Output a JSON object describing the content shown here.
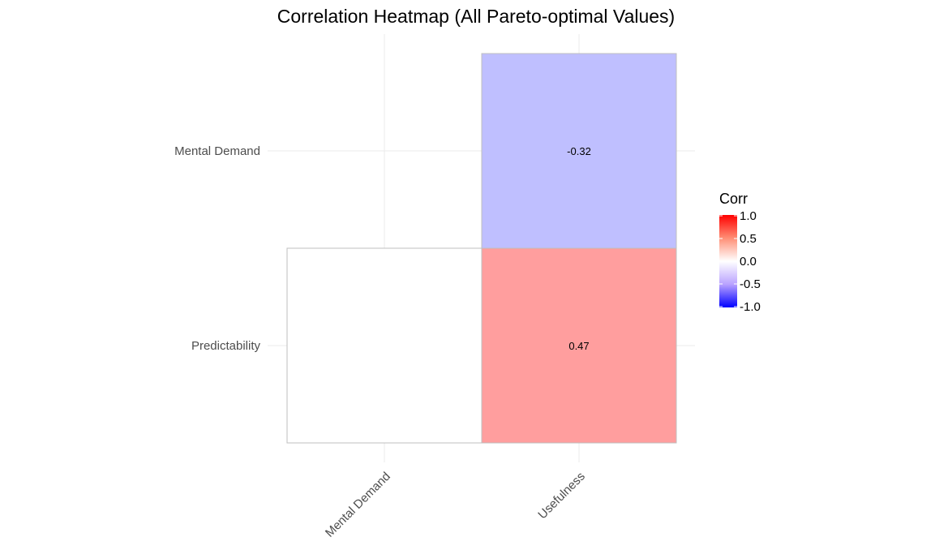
{
  "chart_data": {
    "type": "heatmap",
    "title": "Correlation Heatmap (All Pareto-optimal Values)",
    "x_categories": [
      "Mental Demand",
      "Usefulness"
    ],
    "y_categories": [
      "Predictability",
      "Mental Demand"
    ],
    "cells": [
      {
        "x": "Usefulness",
        "y": "Mental Demand",
        "value": -0.32,
        "label": "-0.32"
      },
      {
        "x": "Mental Demand",
        "y": "Predictability",
        "value": null,
        "label": ""
      },
      {
        "x": "Usefulness",
        "y": "Predictability",
        "value": 0.47,
        "label": "0.47"
      }
    ],
    "legend": {
      "title": "Corr",
      "range": [
        -1.0,
        1.0
      ],
      "ticks": [
        1.0,
        0.5,
        0.0,
        -0.5,
        -1.0
      ],
      "tick_labels": [
        "1.0",
        "0.5",
        "0.0",
        "-0.5",
        "-1.0"
      ],
      "placement": "right",
      "colors": {
        "low": "#0000ff",
        "mid": "#ffffff",
        "high": "#ff0000"
      }
    },
    "missing_color": "#ffffff",
    "cell_border_color": "#bfbfbf",
    "grid": true,
    "x_tick_rotation_deg": 45
  }
}
